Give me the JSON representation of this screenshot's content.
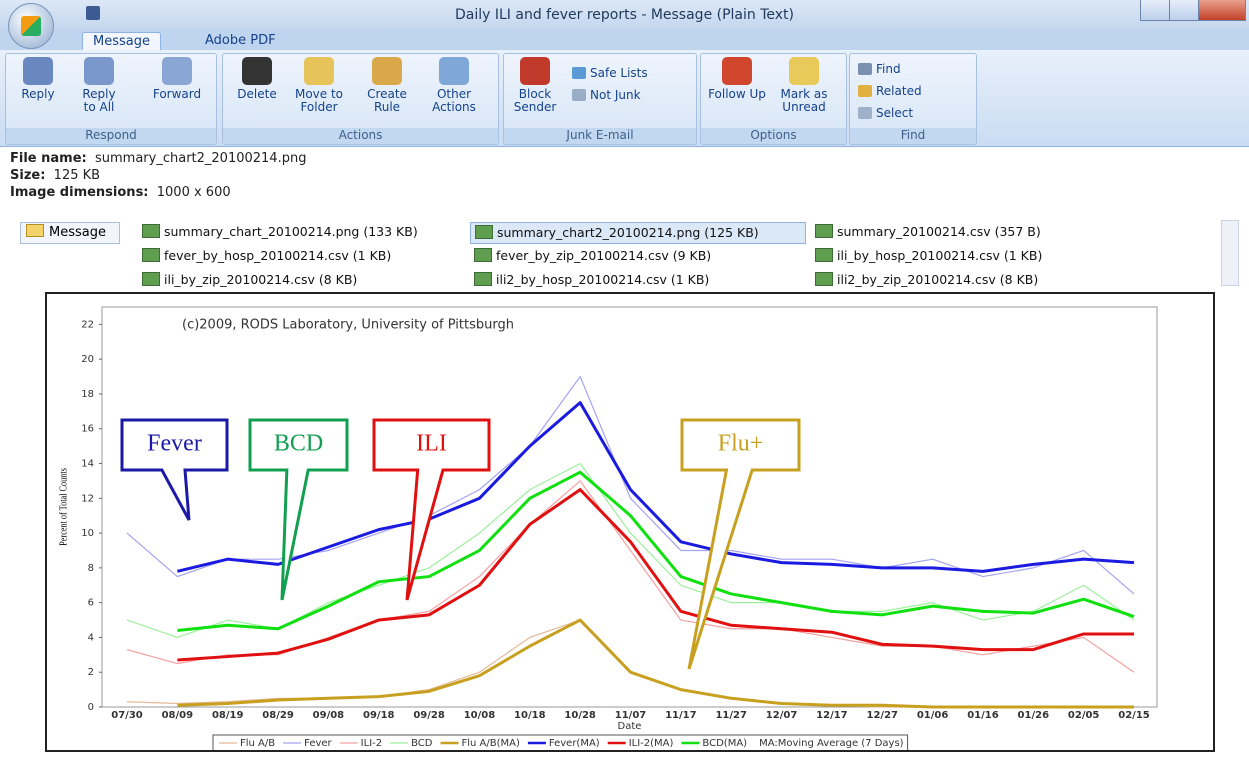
{
  "window": {
    "title": "Daily ILI and fever reports - Message (Plain Text)"
  },
  "tabs": [
    "Message",
    "Adobe PDF"
  ],
  "ribbon": [
    {
      "name": "Respond",
      "buttons": [
        "Reply",
        "Reply to All",
        "Forward"
      ]
    },
    {
      "name": "Actions",
      "buttons": [
        "Delete",
        "Move to Folder",
        "Create Rule",
        "Other Actions"
      ]
    },
    {
      "name": "Junk E-mail",
      "buttons": [
        "Block Sender",
        "Safe Lists",
        "Not Junk"
      ]
    },
    {
      "name": "Options",
      "buttons": [
        "Follow Up",
        "Mark as Unread"
      ]
    },
    {
      "name": "Find",
      "buttons": [
        "Find",
        "Related",
        "Select"
      ]
    }
  ],
  "file_info": [
    {
      "label": "File name:",
      "value": "summary_chart2_20100214.png"
    },
    {
      "label": "Size:",
      "value": "125 KB"
    },
    {
      "label": "Image dimensions:",
      "value": "1000 x 600"
    }
  ],
  "message_tab": "Message",
  "attachments": [
    "summary_chart_20100214.png (133 KB)",
    "summary_chart2_20100214.png (125 KB)",
    "summary_20100214.csv (357 B)",
    "fever_by_hosp_20100214.csv (1 KB)",
    "fever_by_zip_20100214.csv (9 KB)",
    "ili_by_hosp_20100214.csv (1 KB)",
    "ili_by_zip_20100214.csv (8 KB)",
    "ili2_by_hosp_20100214.csv (1 KB)",
    "ili2_by_zip_20100214.csv (8 KB)"
  ],
  "chart_data": {
    "type": "line",
    "copyright": "(c)2009, RODS Laboratory, University of Pittsburgh",
    "x_label": "Date",
    "y_label": "Percent of Total Counts",
    "categories": [
      "07/30",
      "08/09",
      "08/19",
      "08/29",
      "09/08",
      "09/18",
      "09/28",
      "10/08",
      "10/18",
      "10/28",
      "11/07",
      "11/17",
      "11/27",
      "12/07",
      "12/17",
      "12/27",
      "01/06",
      "01/16",
      "01/26",
      "02/05",
      "02/15"
    ],
    "ylim": [
      0,
      23
    ],
    "yticks": [
      0,
      2,
      4,
      6,
      8,
      10,
      12,
      14,
      16,
      18,
      20,
      22
    ],
    "grid": false,
    "series": [
      {
        "name": "Flu A/B",
        "color": "#e6b896",
        "line_width": 1.2,
        "values": [
          0.3,
          0.2,
          0.3,
          0.5,
          0.5,
          0.6,
          1,
          2,
          4,
          5,
          2,
          1,
          0.5,
          0.2,
          0.1,
          0,
          0,
          0,
          0,
          0,
          0
        ]
      },
      {
        "name": "Fever",
        "color": "#a4a4f0",
        "line_width": 1.2,
        "values": [
          10,
          7.5,
          8.5,
          8.5,
          9,
          10,
          11,
          12.5,
          15,
          19,
          12,
          9,
          9,
          8.5,
          8.5,
          8,
          8.5,
          7.5,
          8,
          9,
          6.5
        ]
      },
      {
        "name": "ILI-2",
        "color": "#f4a0a0",
        "line_width": 1.2,
        "values": [
          3.3,
          2.5,
          3,
          3,
          4,
          5,
          5.5,
          7.5,
          10.5,
          13,
          9,
          5,
          4.5,
          4.5,
          4,
          3.5,
          3.5,
          3,
          3.5,
          4,
          2
        ]
      },
      {
        "name": "BCD",
        "color": "#9cf09c",
        "line_width": 1.2,
        "values": [
          5,
          4,
          5,
          4.5,
          6,
          7,
          8,
          10,
          12.5,
          14,
          10,
          7,
          6,
          6,
          5.5,
          5.5,
          6,
          5,
          5.5,
          7,
          5
        ]
      },
      {
        "name": "Flu A/B(MA)",
        "color": "#c8a020",
        "line_width": 3,
        "values": [
          null,
          0.1,
          0.2,
          0.4,
          0.5,
          0.6,
          0.9,
          1.8,
          3.5,
          5,
          2,
          1,
          0.5,
          0.2,
          0.1,
          0.1,
          0,
          0,
          0,
          0,
          0
        ]
      },
      {
        "name": "Fever(MA)",
        "color": "#1a1ae0",
        "line_width": 3,
        "values": [
          null,
          7.8,
          8.5,
          8.2,
          9.2,
          10.2,
          10.8,
          12,
          15,
          17.5,
          12.5,
          9.5,
          8.8,
          8.3,
          8.2,
          8,
          8,
          7.8,
          8.2,
          8.5,
          8.3
        ]
      },
      {
        "name": "ILI-2(MA)",
        "color": "#e01010",
        "line_width": 3,
        "values": [
          null,
          2.7,
          2.9,
          3.1,
          3.9,
          5,
          5.3,
          7,
          10.5,
          12.5,
          9.5,
          5.5,
          4.7,
          4.5,
          4.3,
          3.6,
          3.5,
          3.3,
          3.3,
          4.2,
          4.2
        ]
      },
      {
        "name": "BCD(MA)",
        "color": "#10e010",
        "line_width": 3,
        "values": [
          null,
          4.4,
          4.7,
          4.5,
          5.8,
          7.2,
          7.5,
          9,
          12,
          13.5,
          11,
          7.5,
          6.5,
          6,
          5.5,
          5.3,
          5.8,
          5.5,
          5.4,
          6.2,
          5.2
        ]
      }
    ],
    "legend_note": "MA:Moving Average (7 Days)",
    "annotations": [
      {
        "text": "Fever",
        "color": "#1a1aa6"
      },
      {
        "text": "BCD",
        "color": "#10a050"
      },
      {
        "text": "ILI",
        "color": "#e01010"
      },
      {
        "text": "Flu+",
        "color": "#c8a020"
      }
    ]
  }
}
